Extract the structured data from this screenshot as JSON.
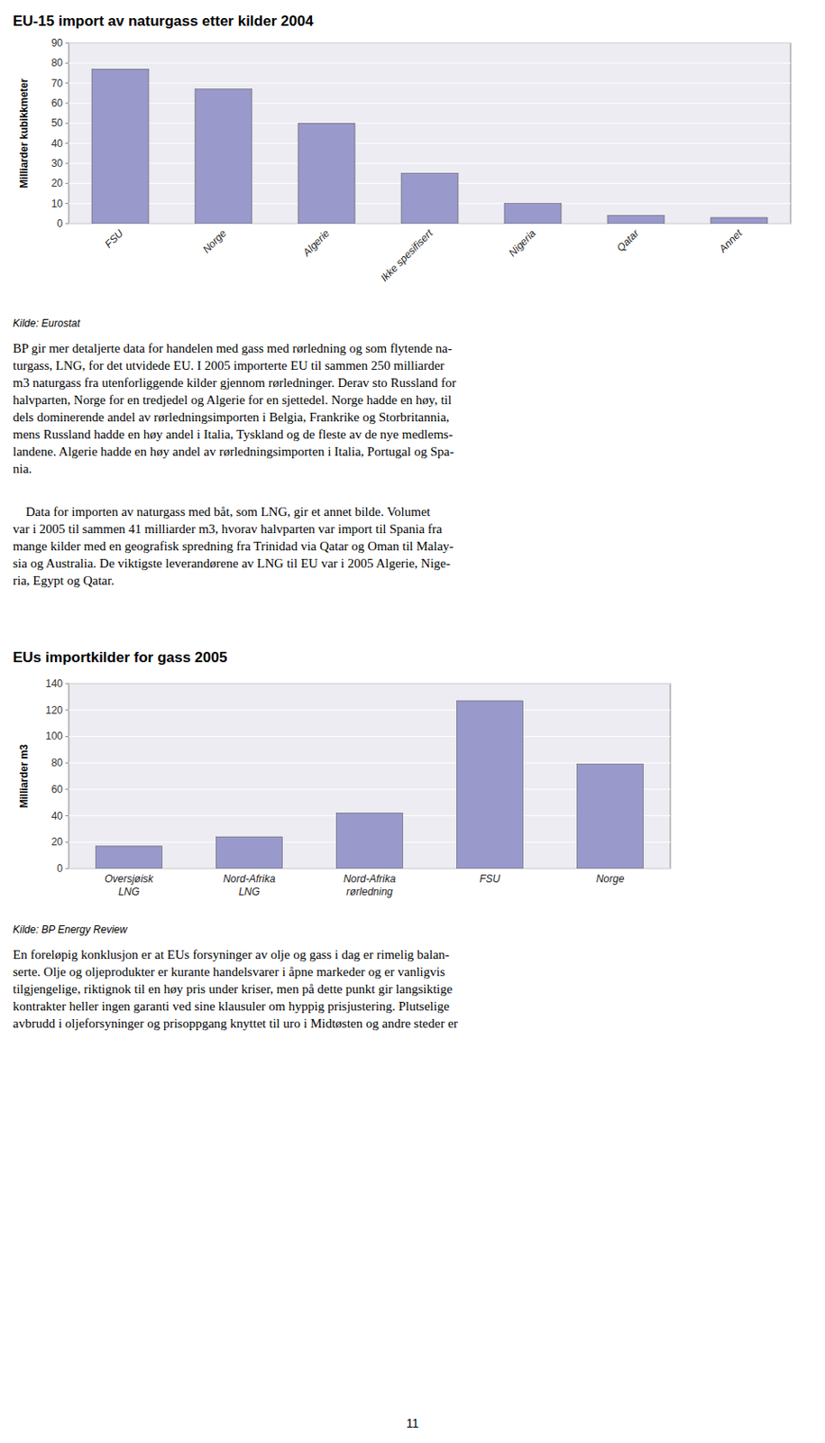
{
  "chart_data": [
    {
      "type": "bar",
      "title": "EU-15 import av naturgass etter kilder 2004",
      "categories": [
        "FSU",
        "Norge",
        "Algerie",
        "Ikke spesifisert",
        "Nigeria",
        "Qatar",
        "Annet"
      ],
      "values": [
        77,
        67,
        50,
        25,
        10,
        4,
        3
      ],
      "ylabel": "Milliarder kubikkmeter",
      "ylim": [
        0,
        90
      ],
      "yticks": [
        0,
        10,
        20,
        30,
        40,
        50,
        60,
        70,
        80,
        90
      ],
      "color": "#9999cc",
      "grid": true,
      "annotations": [
        "Kilde: Eurostat"
      ]
    },
    {
      "type": "bar",
      "title": "EUs importkilder for gass 2005",
      "categories": [
        "Oversjøisk\nLNG",
        "Nord-Afrika\nLNG",
        "Nord-Afrika\nrørledning",
        "FSU",
        "Norge"
      ],
      "values": [
        17,
        24,
        42,
        127,
        79
      ],
      "ylabel": "Milliarder m3",
      "ylim": [
        0,
        140
      ],
      "yticks": [
        0,
        20,
        40,
        60,
        80,
        100,
        120,
        140
      ],
      "color": "#9999cc",
      "grid": true,
      "annotations": [
        "Kilde: BP Energy Review"
      ]
    }
  ],
  "text_blocks": [
    "BP gir mer detaljerte data for handelen med gass med rørledning og som flytende na-\nturgass, LNG, for det utvidede EU. I 2005 importerte EU til sammen 250 milliarder\nm3 naturgass fra utenforliggende kilder gjennom rørledninger. Derav sto Russland for\nhalvparten, Norge for en tredjedel og Algerie for en sjettedel. Norge hadde en høy, til\ndels dominerende andel av rørledningsimporten i Belgia, Frankrike og Storbritannia,\nmens Russland hadde en høy andel i Italia, Tyskland og de fleste av de nye medlems-\nlandene. Algerie hadde en høy andel av rørledningsimporten i Italia, Portugal og Spa-\nnia.",
    "    Data for importen av naturgass med båt, som LNG, gir et annet bilde. Volumet\nvar i 2005 til sammen 41 milliarder m3, hvorav halvparten var import til Spania fra\nmange kilder med en geografisk spredning fra Trinidad via Qatar og Oman til Malay-\nsia og Australia. De viktigste leverandørene av LNG til EU var i 2005 Algerie, Nige-\nria, Egypt og Qatar.",
    "En foreløpig konklusjon er at EUs forsyninger av olje og gass i dag er rimelig balan-\nserte. Olje og oljeprodukter er kurante handelsvarer i åpne markeder og er vanligvis\ntilgjengelige, riktignok til en høy pris under kriser, men på dette punkt gir langsiktige\nkontrakter heller ingen garanti ved sine klausuler om hyppig prisjustering. Plutselige\navbrudd i oljeforsyninger og prisoppgang knyttet til uro i Midtøsten og andre steder er"
  ],
  "page_number": "11"
}
